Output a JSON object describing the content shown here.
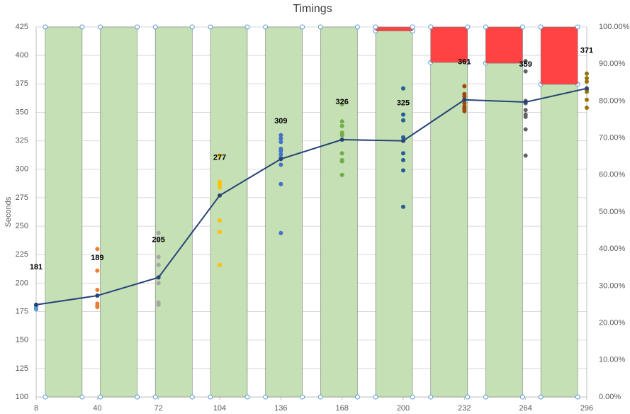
{
  "chart_data": {
    "type": "combo",
    "title": "Timings",
    "y_label": "Seconds",
    "xlim": [
      8,
      296
    ],
    "xticks": [
      8,
      40,
      72,
      104,
      136,
      168,
      200,
      232,
      264,
      296
    ],
    "ylim": [
      100,
      425
    ],
    "yticks": [
      100,
      125,
      150,
      175,
      200,
      225,
      250,
      275,
      300,
      325,
      350,
      375,
      400,
      425
    ],
    "y2lim": [
      0,
      100
    ],
    "y2ticks": [
      {
        "value": 0,
        "label": "0.00%"
      },
      {
        "value": 10,
        "label": "10.00%"
      },
      {
        "value": 20,
        "label": "20.00%"
      },
      {
        "value": 30,
        "label": "30.00%"
      },
      {
        "value": 40,
        "label": "40.00%"
      },
      {
        "value": 50,
        "label": "50.00%"
      },
      {
        "value": 60,
        "label": "60.00%"
      },
      {
        "value": 70,
        "label": "70.00%"
      },
      {
        "value": 80,
        "label": "80.00%"
      },
      {
        "value": 90,
        "label": "90.00%"
      },
      {
        "value": 100,
        "label": "100.00%"
      }
    ],
    "grid": true,
    "series": [
      {
        "type": "bar",
        "axis": "y2",
        "color": "#c5e0b4",
        "values": [
          100,
          100,
          100,
          100,
          100,
          100,
          98.9,
          90.4,
          90.2,
          84.5
        ]
      },
      {
        "type": "bar",
        "axis": "y2",
        "color": "#ff4343",
        "values": [
          0,
          0,
          0,
          0,
          0,
          0,
          1.1,
          9.6,
          9.8,
          15.5
        ]
      },
      {
        "type": "scatter",
        "color": "#5b9bd5",
        "x": [
          8,
          8,
          8,
          8
        ],
        "values": [
          177,
          178,
          179,
          180
        ]
      },
      {
        "type": "scatter",
        "color": "#ed7d31",
        "x": [
          40,
          40,
          40,
          40,
          40,
          40
        ],
        "values": [
          230,
          211,
          194,
          182,
          180,
          179
        ]
      },
      {
        "type": "scatter",
        "color": "#a5a5a5",
        "x": [
          72,
          72,
          72,
          72,
          72,
          72,
          72
        ],
        "values": [
          244,
          238,
          223,
          216,
          200,
          183,
          181
        ]
      },
      {
        "type": "scatter",
        "color": "#ffc000",
        "x": [
          104,
          104,
          104,
          104,
          104,
          104,
          104,
          104
        ],
        "values": [
          312,
          289,
          287,
          284,
          277,
          255,
          245,
          216
        ]
      },
      {
        "type": "scatter",
        "color": "#4472c4",
        "x": [
          136,
          136,
          136,
          136,
          136,
          136,
          136,
          136,
          136,
          136
        ],
        "values": [
          330,
          327,
          324,
          318,
          316,
          313,
          310,
          304,
          287,
          244
        ]
      },
      {
        "type": "scatter",
        "color": "#70ad47",
        "x": [
          168,
          168,
          168,
          168,
          168,
          168,
          168,
          168,
          168
        ],
        "values": [
          357,
          342,
          338,
          332,
          330,
          314,
          308,
          307,
          295
        ]
      },
      {
        "type": "scatter",
        "color": "#255e91",
        "x": [
          200,
          200,
          200,
          200,
          200,
          200,
          200,
          200
        ],
        "values": [
          371,
          348,
          343,
          328,
          314,
          308,
          299,
          267
        ]
      },
      {
        "type": "scatter",
        "color": "#9e480e",
        "x": [
          232,
          232,
          232,
          232,
          232,
          232,
          232,
          232
        ],
        "values": [
          373,
          366,
          364,
          361,
          358,
          355,
          353,
          351
        ]
      },
      {
        "type": "scatter",
        "color": "#636363",
        "x": [
          264,
          264,
          264,
          264,
          264,
          264,
          264,
          264,
          264
        ],
        "values": [
          395,
          386,
          360,
          358,
          352,
          348,
          346,
          335,
          312
        ]
      },
      {
        "type": "scatter",
        "color": "#997300",
        "x": [
          296,
          296,
          296,
          296,
          296,
          296,
          296
        ],
        "values": [
          384,
          380,
          377,
          370,
          368,
          361,
          354
        ]
      },
      {
        "type": "line",
        "color": "#264478",
        "x": [
          8,
          40,
          72,
          104,
          136,
          168,
          200,
          232,
          264,
          296
        ],
        "values": [
          181,
          189,
          205,
          277,
          309,
          326,
          325,
          361,
          359,
          371
        ],
        "data_labels": true
      }
    ]
  }
}
